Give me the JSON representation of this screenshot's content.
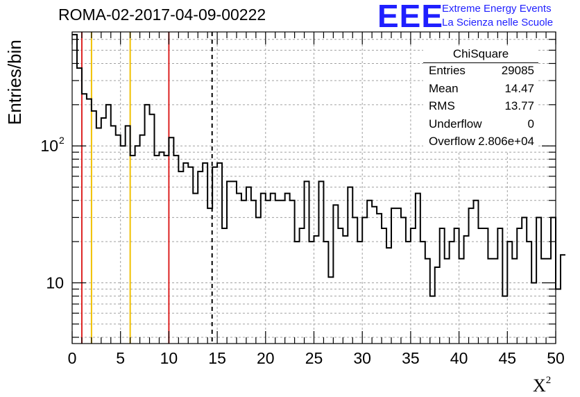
{
  "title": "ROMA-02-2017-04-09-00222",
  "logo": {
    "mark": "EEE",
    "line1": "Extreme Energy Events",
    "line2": "La Scienza nelle Scuole"
  },
  "stats": {
    "title": "ChiSquare",
    "rows": [
      {
        "key": "Entries",
        "value": "29085"
      },
      {
        "key": "Mean",
        "value": "14.47"
      },
      {
        "key": "RMS",
        "value": "13.77"
      },
      {
        "key": "Underflow",
        "value": "0"
      },
      {
        "key": "Overflow",
        "value": "2.806e+04"
      }
    ]
  },
  "colors": {
    "histogram": "#000000",
    "red_lines": "#dd2222",
    "yellow_lines": "#f0c000",
    "grid": "#a0a0a0"
  },
  "chart_data": {
    "type": "histogram",
    "xlabel": "X",
    "xlabel_superscript": "2",
    "ylabel": "Entries/bin",
    "xlim": [
      0,
      50
    ],
    "ylim": [
      3.6,
      680
    ],
    "yscale": "log",
    "grid": true,
    "bin_width": 0.5,
    "x_ticks": [
      0,
      5,
      10,
      15,
      20,
      25,
      30,
      35,
      40,
      45,
      50
    ],
    "x_tick_labels": [
      "0",
      "5",
      "10",
      "15",
      "20",
      "25",
      "30",
      "35",
      "40",
      "45",
      "50"
    ],
    "y_ticks": [
      10,
      100
    ],
    "y_tick_labels": [
      "10",
      "10",
      "2"
    ],
    "values": [
      650,
      370,
      240,
      220,
      180,
      135,
      160,
      200,
      140,
      120,
      100,
      140,
      85,
      100,
      120,
      200,
      170,
      85,
      90,
      85,
      115,
      85,
      65,
      75,
      70,
      45,
      65,
      75,
      35,
      70,
      75,
      25,
      55,
      55,
      45,
      40,
      50,
      40,
      30,
      45,
      40,
      45,
      40,
      40,
      45,
      40,
      20,
      25,
      55,
      20,
      22,
      55,
      20,
      11,
      37,
      25,
      22,
      50,
      30,
      20,
      30,
      40,
      36,
      32,
      25,
      18,
      35,
      35,
      30,
      20,
      25,
      45,
      20,
      15,
      8,
      13,
      25,
      15,
      20,
      25,
      15,
      22,
      35,
      40,
      25,
      25,
      15,
      15,
      25,
      8,
      20,
      15,
      25,
      30,
      20,
      10,
      30,
      15,
      15,
      30,
      9,
      16
    ],
    "vertical_lines": [
      {
        "x": 1,
        "color": "red",
        "style": "solid"
      },
      {
        "x": 2,
        "color": "yellow",
        "style": "solid"
      },
      {
        "x": 6,
        "color": "yellow",
        "style": "solid"
      },
      {
        "x": 10,
        "color": "red",
        "style": "solid"
      },
      {
        "x": 14.47,
        "color": "black",
        "style": "dashed"
      }
    ]
  }
}
